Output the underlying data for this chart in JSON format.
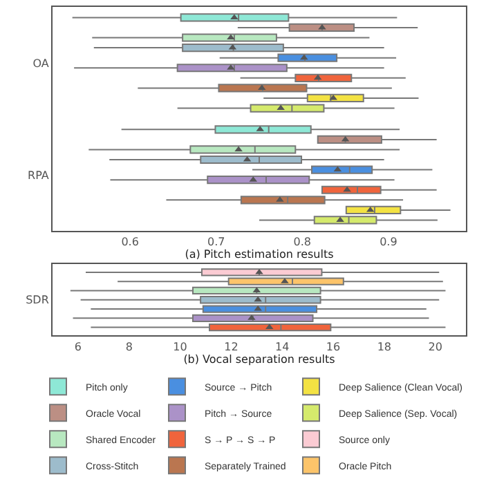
{
  "chart_data": [
    {
      "type": "box",
      "orientation": "horizontal",
      "xlabel": "(a) Pitch estimation results",
      "categories": [
        "OA",
        "RPA"
      ],
      "xlim": [
        0.51,
        0.99
      ],
      "xticks": [
        0.6,
        0.7,
        0.8,
        0.9
      ],
      "legend": "bottom",
      "series": [
        {
          "name": "Pitch only",
          "color": "#8ee8d6",
          "boxes": [
            {
              "low": 0.533,
              "q1": 0.659,
              "median": 0.726,
              "q3": 0.784,
              "high": 0.91,
              "mean": 0.721
            },
            {
              "low": 0.59,
              "q1": 0.699,
              "median": 0.761,
              "q3": 0.81,
              "high": 0.913,
              "mean": 0.751
            }
          ]
        },
        {
          "name": "Oracle Vocal",
          "color": "#bc8f84",
          "boxes": [
            {
              "low": 0.725,
              "q1": 0.785,
              "median": 0.823,
              "q3": 0.86,
              "high": 0.934,
              "mean": 0.823
            },
            {
              "low": 0.818,
              "q1": 0.818,
              "median": 0.85,
              "q3": 0.892,
              "high": 0.956,
              "mean": 0.85
            }
          ]
        },
        {
          "name": "Shared Encoder",
          "color": "#b8e8c0",
          "boxes": [
            {
              "low": 0.556,
              "q1": 0.661,
              "median": 0.721,
              "q3": 0.77,
              "high": 0.878,
              "mean": 0.717
            },
            {
              "low": 0.552,
              "q1": 0.67,
              "median": 0.745,
              "q3": 0.792,
              "high": 0.913,
              "mean": 0.726
            }
          ]
        },
        {
          "name": "Cross-Stitch",
          "color": "#9dbccc",
          "boxes": [
            {
              "low": 0.558,
              "q1": 0.661,
              "median": 0.72,
              "q3": 0.778,
              "high": 0.895,
              "mean": 0.719
            },
            {
              "low": 0.576,
              "q1": 0.682,
              "median": 0.75,
              "q3": 0.799,
              "high": 0.895,
              "mean": 0.736
            }
          ]
        },
        {
          "name": "Source → Pitch",
          "color": "#4a8fe0",
          "boxes": [
            {
              "low": 0.704,
              "q1": 0.772,
              "median": 0.803,
              "q3": 0.84,
              "high": 0.909,
              "mean": 0.802
            },
            {
              "low": 0.742,
              "q1": 0.811,
              "median": 0.855,
              "q3": 0.881,
              "high": 0.951,
              "mean": 0.841
            }
          ]
        },
        {
          "name": "Pitch → Source",
          "color": "#ab92c8",
          "boxes": [
            {
              "low": 0.535,
              "q1": 0.655,
              "median": 0.721,
              "q3": 0.782,
              "high": 0.895,
              "mean": 0.717
            },
            {
              "low": 0.577,
              "q1": 0.69,
              "median": 0.758,
              "q3": 0.808,
              "high": 0.907,
              "mean": 0.743
            }
          ]
        },
        {
          "name": "S → P → S → P",
          "color": "#f0643c",
          "boxes": [
            {
              "low": 0.728,
              "q1": 0.792,
              "median": 0.819,
              "q3": 0.857,
              "high": 0.92,
              "mean": 0.818
            },
            {
              "low": 0.823,
              "q1": 0.823,
              "median": 0.864,
              "q3": 0.891,
              "high": 0.956,
              "mean": 0.852
            }
          ]
        },
        {
          "name": "Separately Trained",
          "color": "#ba7650",
          "boxes": [
            {
              "low": 0.609,
              "q1": 0.703,
              "median": 0.754,
              "q3": 0.805,
              "high": 0.904,
              "mean": 0.753
            },
            {
              "low": 0.642,
              "q1": 0.729,
              "median": 0.783,
              "q3": 0.826,
              "high": 0.917,
              "mean": 0.774
            }
          ]
        },
        {
          "name": "Deep Salience (Clean Vocal)",
          "color": "#f3e243",
          "boxes": [
            {
              "low": 0.755,
              "q1": 0.806,
              "median": 0.833,
              "q3": 0.871,
              "high": 0.935,
              "mean": 0.836
            },
            {
              "low": 0.851,
              "q1": 0.851,
              "median": 0.884,
              "q3": 0.914,
              "high": 0.972,
              "mean": 0.879
            }
          ]
        },
        {
          "name": "Deep Salience (Sep. Vocal)",
          "color": "#d5ea6c",
          "boxes": [
            {
              "low": 0.655,
              "q1": 0.74,
              "median": 0.788,
              "q3": 0.825,
              "high": 0.907,
              "mean": 0.775
            },
            {
              "low": 0.75,
              "q1": 0.814,
              "median": 0.854,
              "q3": 0.886,
              "high": 0.957,
              "mean": 0.844
            }
          ]
        }
      ]
    },
    {
      "type": "box",
      "orientation": "horizontal",
      "xlabel": "(b) Vocal separation results",
      "categories": [
        "SDR"
      ],
      "xlim": [
        5.0,
        21.2
      ],
      "xticks": [
        6,
        8,
        10,
        12,
        14,
        16,
        18,
        20
      ],
      "legend": "bottom",
      "series": [
        {
          "name": "Source only",
          "color": "#fbcbd3",
          "boxes": [
            {
              "low": 6.3,
              "q1": 10.85,
              "median": 13.1,
              "q3": 15.55,
              "high": 20.15,
              "mean": 13.1
            }
          ]
        },
        {
          "name": "Oracle Pitch",
          "color": "#fcc46a",
          "boxes": [
            {
              "low": 7.55,
              "q1": 11.9,
              "median": 14.4,
              "q3": 16.4,
              "high": 20.3,
              "mean": 14.1
            }
          ]
        },
        {
          "name": "Shared Encoder",
          "color": "#b8e8c0",
          "boxes": [
            {
              "low": 5.7,
              "q1": 10.5,
              "median": 13.0,
              "q3": 15.5,
              "high": 20.4,
              "mean": 13.0
            }
          ]
        },
        {
          "name": "Cross-Stitch",
          "color": "#9dbccc",
          "boxes": [
            {
              "low": 6.1,
              "q1": 10.8,
              "median": 13.35,
              "q3": 15.5,
              "high": 20.15,
              "mean": 13.05
            }
          ]
        },
        {
          "name": "Source → Pitch",
          "color": "#4a8fe0",
          "boxes": [
            {
              "low": 6.5,
              "q1": 10.9,
              "median": 13.35,
              "q3": 15.35,
              "high": 19.65,
              "mean": 13.05
            }
          ]
        },
        {
          "name": "Pitch → Source",
          "color": "#ab92c8",
          "boxes": [
            {
              "low": 5.8,
              "q1": 10.5,
              "median": 12.85,
              "q3": 15.2,
              "high": 19.75,
              "mean": 12.8
            }
          ]
        },
        {
          "name": "S → P → S → P",
          "color": "#f0643c",
          "boxes": [
            {
              "low": 6.5,
              "q1": 11.15,
              "median": 13.95,
              "q3": 15.9,
              "high": 20.4,
              "mean": 13.5
            }
          ]
        }
      ]
    }
  ]
}
